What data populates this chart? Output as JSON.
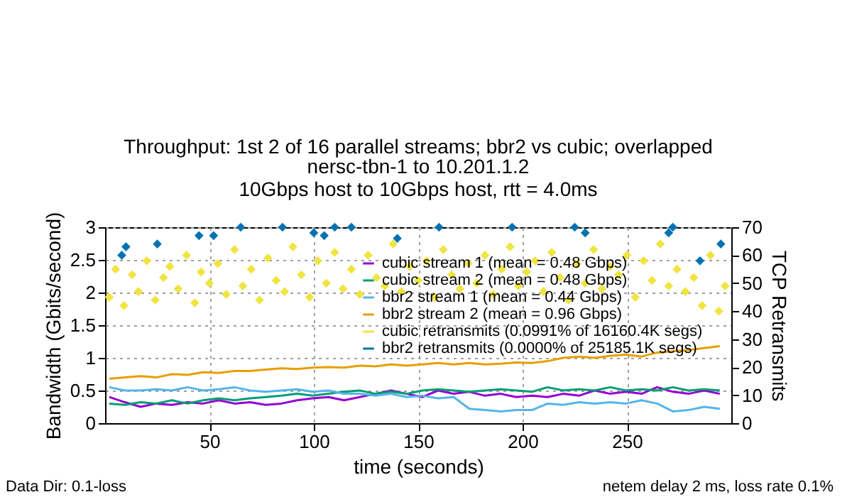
{
  "chart_data": {
    "type": "line",
    "title": "Throughput: 1st 2 of 16 parallel streams; bbr2 vs cubic; overlapped",
    "subtitle": "nersc-tbn-1 to 10.201.1.2\n10Gbps host to 10Gbps host, rtt = 4.0ms",
    "xlabel": "time (seconds)",
    "ylabel": "Bandwidth (Gbits/second)",
    "y2label": "TCP Retransmits",
    "annotations": [
      "Data Dir: 0.1-loss",
      "netem delay 2 ms, loss rate 0.1%"
    ],
    "x": [
      2,
      9.5,
      17,
      24.5,
      32,
      39.5,
      47,
      54.5,
      62,
      69.5,
      77,
      84.5,
      92,
      99.5,
      107,
      114.5,
      122,
      129.5,
      137,
      144.5,
      152,
      159.5,
      167,
      174.5,
      182,
      189.5,
      197,
      204.5,
      212,
      219.5,
      227,
      234.5,
      242,
      249.5,
      257,
      264.5,
      272,
      279.5,
      287,
      294.5
    ],
    "xlim": [
      0,
      300
    ],
    "xticks": [
      50,
      100,
      150,
      200,
      250
    ],
    "ylim": [
      0,
      3
    ],
    "yticks": [
      0,
      0.5,
      1,
      1.5,
      2,
      2.5,
      3
    ],
    "y2lim": [
      0,
      70
    ],
    "y2ticks": [
      0,
      10,
      20,
      30,
      40,
      50,
      60,
      70
    ],
    "grid": true,
    "legend": "top right",
    "line_style": "solid",
    "series": [
      {
        "name": "cubic stream 1 (mean = 0.48 Gbps)",
        "color": "#9400d3",
        "values": [
          0.4,
          0.32,
          0.25,
          0.3,
          0.28,
          0.32,
          0.3,
          0.35,
          0.3,
          0.32,
          0.28,
          0.3,
          0.35,
          0.38,
          0.4,
          0.35,
          0.4,
          0.45,
          0.5,
          0.45,
          0.4,
          0.5,
          0.45,
          0.48,
          0.42,
          0.45,
          0.4,
          0.42,
          0.4,
          0.45,
          0.42,
          0.5,
          0.45,
          0.48,
          0.45,
          0.55,
          0.48,
          0.45,
          0.5,
          0.45
        ]
      },
      {
        "name": "cubic stream 2 (mean = 0.48 Gbps)",
        "color": "#009e73",
        "values": [
          0.3,
          0.28,
          0.32,
          0.3,
          0.35,
          0.3,
          0.35,
          0.38,
          0.35,
          0.38,
          0.4,
          0.42,
          0.45,
          0.42,
          0.45,
          0.48,
          0.5,
          0.45,
          0.48,
          0.45,
          0.5,
          0.52,
          0.5,
          0.48,
          0.5,
          0.52,
          0.5,
          0.48,
          0.55,
          0.5,
          0.52,
          0.5,
          0.55,
          0.5,
          0.52,
          0.5,
          0.55,
          0.5,
          0.52,
          0.5
        ]
      },
      {
        "name": "bbr2 stream 1 (mean = 0.44 Gbps)",
        "color": "#56b4e9",
        "values": [
          0.55,
          0.5,
          0.5,
          0.52,
          0.5,
          0.55,
          0.5,
          0.52,
          0.55,
          0.5,
          0.48,
          0.5,
          0.52,
          0.48,
          0.5,
          0.45,
          0.45,
          0.42,
          0.45,
          0.4,
          0.42,
          0.38,
          0.4,
          0.22,
          0.2,
          0.18,
          0.2,
          0.2,
          0.3,
          0.28,
          0.32,
          0.3,
          0.32,
          0.3,
          0.35,
          0.3,
          0.18,
          0.2,
          0.25,
          0.22
        ]
      },
      {
        "name": "bbr2 stream 2 (mean = 0.96 Gbps)",
        "color": "#e69f00",
        "values": [
          0.68,
          0.7,
          0.72,
          0.7,
          0.75,
          0.74,
          0.78,
          0.77,
          0.8,
          0.8,
          0.82,
          0.84,
          0.83,
          0.85,
          0.86,
          0.85,
          0.88,
          0.87,
          0.9,
          0.88,
          0.9,
          0.92,
          0.9,
          0.92,
          0.9,
          0.91,
          0.93,
          0.92,
          0.95,
          1.0,
          1.02,
          1.0,
          1.03,
          1.05,
          1.02,
          1.08,
          1.1,
          1.12,
          1.15,
          1.18
        ]
      },
      {
        "name": "cubic retransmits (0.0991% of 16160.4K segs)",
        "color": "#f0e442",
        "type": "scatter",
        "axis": "y2",
        "marker": "diamond",
        "x": [
          2,
          5,
          9,
          13,
          16,
          20,
          24,
          28,
          31,
          35,
          39,
          43,
          46,
          50,
          54,
          58,
          62,
          66,
          70,
          74,
          78,
          82,
          86,
          90,
          94,
          98,
          102,
          106,
          110,
          114,
          118,
          122,
          126,
          130,
          134,
          138,
          142,
          146,
          150,
          154,
          158,
          162,
          166,
          170,
          174,
          178,
          182,
          186,
          190,
          194,
          198,
          202,
          206,
          210,
          214,
          218,
          222,
          226,
          230,
          234,
          238,
          242,
          246,
          250,
          254,
          258,
          262,
          266,
          270,
          274,
          278,
          282,
          286,
          290,
          294,
          297
        ],
        "values": [
          45,
          55,
          42,
          53,
          47,
          58,
          44,
          52,
          56,
          48,
          60,
          43,
          54,
          50,
          57,
          46,
          62,
          49,
          55,
          44,
          59,
          51,
          47,
          63,
          53,
          45,
          58,
          50,
          61,
          48,
          55,
          46,
          60,
          52,
          49,
          64,
          47,
          56,
          51,
          58,
          45,
          62,
          53,
          48,
          57,
          50,
          60,
          46,
          55,
          63,
          49,
          54,
          58,
          47,
          61,
          52,
          44,
          57,
          50,
          62,
          48,
          56,
          53,
          60,
          45,
          58,
          51,
          64,
          49,
          55,
          47,
          52,
          42,
          60,
          40,
          49
        ]
      },
      {
        "name": "bbr2 retransmits (0.0000% of 25185.1K segs)",
        "color": "#0072b2",
        "type": "scatter",
        "axis": "y2",
        "marker": "diamond",
        "x": [
          8,
          10,
          25,
          45,
          52,
          65,
          85,
          100,
          105,
          110,
          118,
          140,
          160,
          195,
          225,
          230,
          270,
          272,
          285,
          295
        ],
        "values": [
          60,
          63,
          64,
          67,
          67,
          70,
          70,
          68,
          67,
          70,
          70,
          66,
          70,
          70,
          70,
          68,
          68,
          70,
          58,
          64
        ]
      }
    ]
  }
}
